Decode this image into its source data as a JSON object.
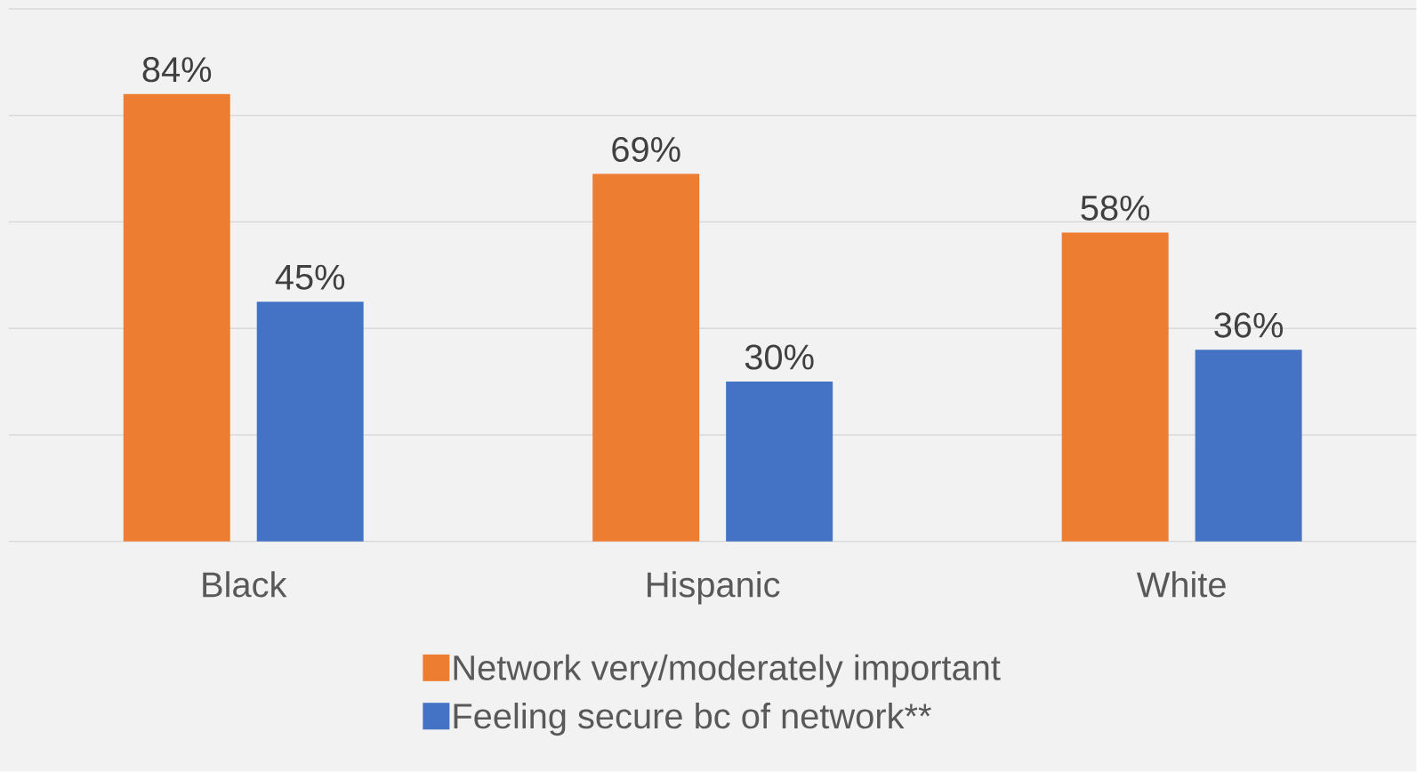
{
  "chart_data": {
    "type": "bar",
    "categories": [
      "Black",
      "Hispanic",
      "White"
    ],
    "series": [
      {
        "name": "Network very/moderately important",
        "color": "#ed7d31",
        "values": [
          84,
          69,
          58
        ],
        "value_labels": [
          "84%",
          "69%",
          "58%"
        ]
      },
      {
        "name": "Feeling secure bc of network**",
        "color": "#4472c4",
        "values": [
          45,
          30,
          36
        ],
        "value_labels": [
          "45%",
          "30%",
          "36%"
        ]
      }
    ],
    "ylim": [
      0,
      100
    ],
    "yticks": [
      {
        "value": 0,
        "label": null
      },
      {
        "value": 20,
        "label": null
      },
      {
        "value": 40,
        "label": null
      },
      {
        "value": 60,
        "label": null
      },
      {
        "value": 80,
        "label": null
      },
      {
        "value": 100,
        "label": null
      }
    ],
    "tick_labels": "x",
    "grid": "y",
    "legend": "bottom"
  }
}
